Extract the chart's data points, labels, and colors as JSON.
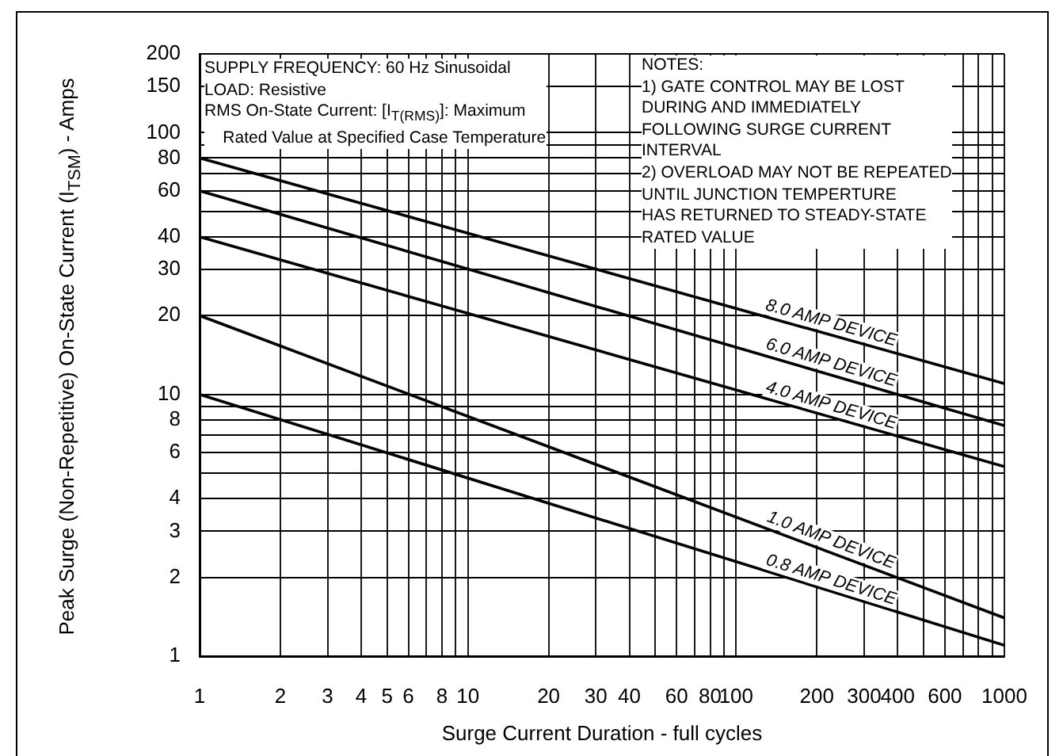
{
  "chart_data": {
    "type": "line",
    "xlabel": "Surge Current Duration - full cycles",
    "ylabel": "Peak Surge (Non-Repetitive) On-State Current (I$_{TSM}$) - Amps",
    "x": [
      1,
      1000
    ],
    "series": [
      {
        "name": "8.0 AMP DEVICE",
        "color": "#000000",
        "values": [
          80,
          11
        ]
      },
      {
        "name": "6.0 AMP DEVICE",
        "color": "#000000",
        "values": [
          60,
          7.6
        ]
      },
      {
        "name": "4.0 AMP DEVICE",
        "color": "#000000",
        "values": [
          40,
          5.3
        ]
      },
      {
        "name": "1.0 AMP DEVICE",
        "color": "#000000",
        "values": [
          20,
          1.4
        ]
      },
      {
        "name": "0.8 AMP DEVICE",
        "color": "#000000",
        "values": [
          10,
          1.1
        ]
      }
    ],
    "log": "xy",
    "xlim": [
      1,
      1000
    ],
    "ylim": [
      1,
      200
    ],
    "xticks": [
      1,
      2,
      3,
      4,
      5,
      6,
      {
        "value": 7,
        "label": null
      },
      8,
      {
        "value": 9,
        "label": null
      },
      10,
      20,
      30,
      40,
      {
        "value": 50,
        "label": null
      },
      60,
      {
        "value": 70,
        "label": null
      },
      80,
      {
        "value": 90,
        "label": null
      },
      100,
      200,
      300,
      400,
      {
        "value": 500,
        "label": null
      },
      600,
      {
        "value": 700,
        "label": null
      },
      {
        "value": 800,
        "label": null
      },
      {
        "value": 900,
        "label": null
      },
      1000
    ],
    "yticks": [
      1,
      2,
      3,
      4,
      {
        "value": 5,
        "label": null
      },
      6,
      {
        "value": 7,
        "label": null
      },
      8,
      {
        "value": 9,
        "label": null
      },
      10,
      20,
      30,
      40,
      {
        "value": 50,
        "label": null
      },
      60,
      {
        "value": 70,
        "label": null
      },
      80,
      {
        "value": 90,
        "label": null
      },
      100,
      150,
      200
    ],
    "grid": true,
    "legend": false,
    "marker": "none",
    "line_style": "solid",
    "annotations": [
      "SUPPLY FREQUENCY: 60 Hz Sinusoidal\nLOAD: Resistive\nRMS On-State Current: [I$_{T(RMS)}$]: Maximum\n    Rated Value at Specified Case Temperature",
      "NOTES:\n1) GATE CONTROL MAY BE LOST\nDURING AND IMMEDIATELY\nFOLLOWING SURGE CURRENT\nINTERVAL\n2) OVERLOAD MAY NOT BE REPEATED\nUNTIL JUNCTION TEMPERTURE\nHAS RETURNED TO STEADY-STATE\nRATED VALUE"
    ]
  }
}
